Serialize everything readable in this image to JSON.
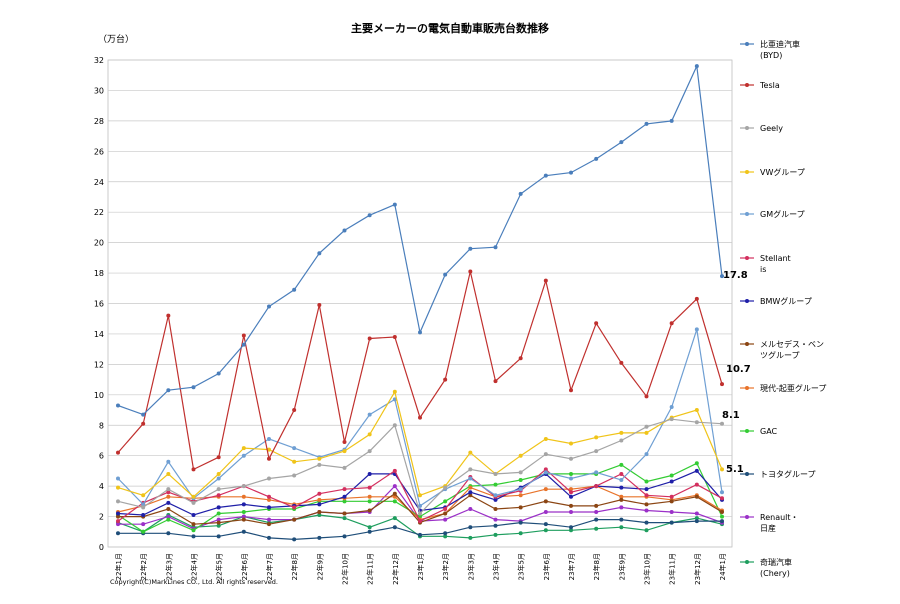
{
  "chart_data": {
    "type": "line",
    "title": "主要メーカーの電気自動車販売台数推移",
    "ylabel": "（万台）",
    "xlabel": "",
    "ylim": [
      0,
      32
    ],
    "yticks": [
      0,
      2,
      4,
      6,
      8,
      10,
      12,
      14,
      16,
      18,
      20,
      22,
      24,
      26,
      28,
      30,
      32
    ],
    "grid": "horizontal",
    "legend_position": "right",
    "copyright": "Copyright(C)MarkLines CO., Ltd. All rights reserved.",
    "categories": [
      "22年1月",
      "22年2月",
      "22年3月",
      "22年4月",
      "22年5月",
      "22年6月",
      "22年7月",
      "22年8月",
      "22年9月",
      "22年10月",
      "22年11月",
      "22年12月",
      "23年1月",
      "23年2月",
      "23年3月",
      "23年4月",
      "23年5月",
      "23年6月",
      "23年7月",
      "23年8月",
      "23年9月",
      "23年10月",
      "23年11月",
      "23年12月",
      "24年1月"
    ],
    "series": [
      {
        "name": "比亜迪汽車 (BYD)",
        "color": "#4a7ebb",
        "end_label": "17.8",
        "values": [
          9.3,
          8.7,
          10.3,
          10.5,
          11.4,
          13.3,
          15.8,
          16.9,
          19.3,
          20.8,
          21.8,
          22.5,
          14.1,
          17.9,
          19.6,
          19.7,
          23.2,
          24.4,
          24.6,
          25.5,
          26.6,
          27.8,
          28.0,
          31.6,
          17.8
        ]
      },
      {
        "name": "Tesla",
        "color": "#c0302e",
        "end_label": "10.7",
        "values": [
          6.2,
          8.1,
          15.2,
          5.1,
          5.9,
          13.9,
          5.8,
          9.0,
          15.9,
          6.9,
          13.7,
          13.8,
          8.5,
          11.0,
          18.1,
          10.9,
          12.4,
          17.5,
          10.3,
          14.7,
          12.1,
          9.9,
          14.7,
          16.3,
          10.7
        ]
      },
      {
        "name": "Geely",
        "color": "#a5a5a5",
        "end_label": "8.1",
        "values": [
          3.0,
          2.6,
          3.8,
          2.9,
          3.8,
          4.0,
          4.5,
          4.7,
          5.4,
          5.2,
          6.3,
          8.0,
          2.2,
          3.9,
          5.1,
          4.8,
          4.9,
          6.1,
          5.8,
          6.3,
          7.0,
          7.9,
          8.4,
          8.2,
          8.1
        ]
      },
      {
        "name": "VWグループ",
        "color": "#f0c419",
        "end_label": "5.1",
        "values": [
          3.9,
          3.4,
          4.8,
          3.3,
          4.8,
          6.5,
          6.4,
          5.6,
          5.8,
          6.3,
          7.4,
          10.2,
          3.4,
          4.0,
          6.2,
          4.8,
          6.0,
          7.1,
          6.8,
          7.2,
          7.5,
          7.5,
          8.5,
          9.0,
          5.1
        ]
      },
      {
        "name": "GMグループ",
        "color": "#6f9fd3",
        "end_label": "",
        "values": [
          4.5,
          2.8,
          5.6,
          3.2,
          4.5,
          6.0,
          7.1,
          6.5,
          5.9,
          6.4,
          8.7,
          9.7,
          2.7,
          3.8,
          4.5,
          3.4,
          3.8,
          4.9,
          4.5,
          4.9,
          4.4,
          6.1,
          9.2,
          14.3,
          3.6
        ]
      },
      {
        "name": "Stellantis",
        "color": "#d32f5e",
        "end_label": "",
        "values": [
          1.7,
          2.9,
          3.6,
          3.0,
          3.4,
          4.0,
          3.3,
          2.6,
          3.5,
          3.8,
          3.9,
          5.0,
          1.7,
          2.5,
          4.6,
          3.3,
          3.7,
          5.1,
          3.6,
          4.0,
          4.8,
          3.4,
          3.3,
          4.1,
          3.2
        ]
      },
      {
        "name": "BMWグループ",
        "color": "#1f1fa8",
        "end_label": "",
        "values": [
          2.2,
          2.1,
          2.9,
          2.1,
          2.6,
          2.8,
          2.6,
          2.7,
          2.8,
          3.3,
          4.8,
          4.8,
          2.4,
          2.6,
          3.6,
          3.1,
          3.9,
          4.8,
          3.3,
          4.0,
          3.9,
          3.8,
          4.3,
          5.0,
          3.1
        ]
      },
      {
        "name": "メルセデス・ベンツグループ",
        "color": "#8b4513",
        "end_label": "",
        "values": [
          2.0,
          2.0,
          2.5,
          1.5,
          1.6,
          1.8,
          1.5,
          1.8,
          2.3,
          2.2,
          2.4,
          3.5,
          1.6,
          2.2,
          3.4,
          2.5,
          2.6,
          3.0,
          2.7,
          2.7,
          3.1,
          2.8,
          3.0,
          3.3,
          2.3
        ]
      },
      {
        "name": "現代-起亜グループ",
        "color": "#e8732a",
        "end_label": "",
        "values": [
          2.3,
          2.7,
          3.3,
          3.2,
          3.3,
          3.3,
          3.1,
          2.8,
          3.1,
          3.2,
          3.3,
          3.3,
          1.8,
          2.2,
          3.9,
          3.3,
          3.4,
          3.8,
          3.8,
          4.0,
          3.3,
          3.3,
          3.1,
          3.4,
          2.4
        ]
      },
      {
        "name": "GAC",
        "color": "#33cc33",
        "end_label": "",
        "values": [
          2.1,
          1.0,
          1.8,
          1.1,
          2.2,
          2.3,
          2.5,
          2.5,
          3.0,
          3.0,
          3.0,
          3.0,
          2.0,
          3.0,
          4.0,
          4.1,
          4.4,
          4.8,
          4.8,
          4.8,
          5.4,
          4.3,
          4.7,
          5.5,
          2.0
        ]
      },
      {
        "name": "トヨタグループ",
        "color": "#1f4e79",
        "end_label": "",
        "values": [
          0.9,
          0.9,
          0.9,
          0.7,
          0.7,
          1.0,
          0.6,
          0.5,
          0.6,
          0.7,
          1.0,
          1.3,
          0.8,
          0.9,
          1.3,
          1.4,
          1.6,
          1.5,
          1.3,
          1.8,
          1.8,
          1.6,
          1.6,
          1.7,
          1.7
        ]
      },
      {
        "name": "Renault・日産",
        "color": "#9b30c8",
        "end_label": "",
        "values": [
          1.5,
          1.5,
          2.0,
          1.2,
          1.8,
          2.0,
          1.8,
          1.8,
          2.3,
          2.2,
          2.3,
          4.0,
          1.7,
          1.8,
          2.5,
          1.8,
          1.7,
          2.3,
          2.3,
          2.3,
          2.6,
          2.4,
          2.3,
          2.2,
          1.6
        ]
      },
      {
        "name": "奇瑞汽車 (Chery)",
        "color": "#1e9e5e",
        "end_label": "",
        "values": [
          1.6,
          1.0,
          2.1,
          1.3,
          1.4,
          2.0,
          1.6,
          1.8,
          2.1,
          1.9,
          1.3,
          1.9,
          0.7,
          0.7,
          0.6,
          0.8,
          0.9,
          1.1,
          1.1,
          1.2,
          1.3,
          1.1,
          1.6,
          1.9,
          1.5
        ]
      }
    ]
  }
}
